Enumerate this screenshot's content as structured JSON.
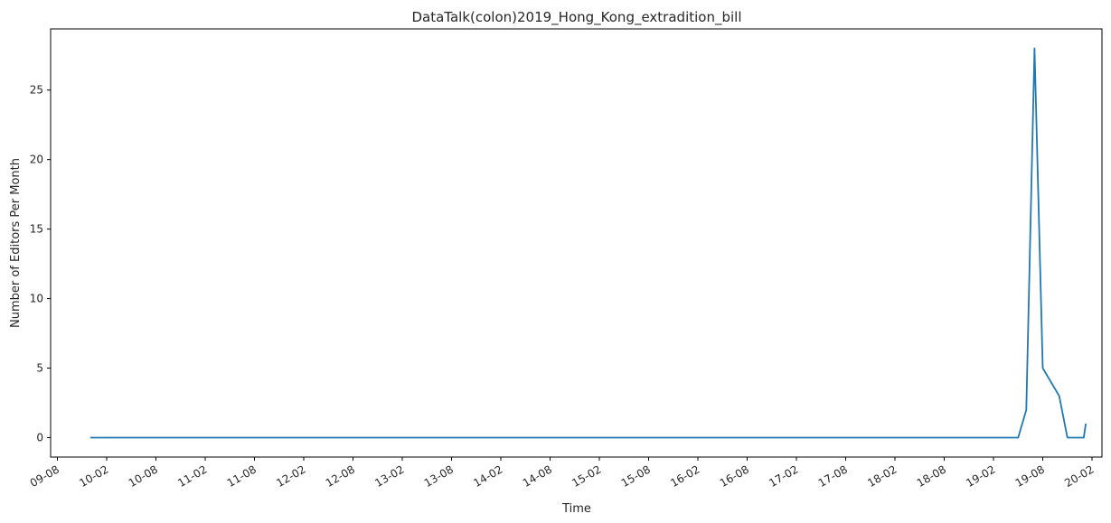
{
  "chart_data": {
    "type": "line",
    "title": "DataTalk(colon)2019_Hong_Kong_extradition_bill",
    "xlabel": "Time",
    "ylabel": "Number of Editors Per Month",
    "x_tick_labels": [
      "09-08",
      "10-02",
      "10-08",
      "11-02",
      "11-08",
      "12-02",
      "12-08",
      "13-02",
      "13-08",
      "14-02",
      "14-08",
      "15-02",
      "15-08",
      "16-02",
      "16-08",
      "17-02",
      "17-08",
      "18-02",
      "18-08",
      "19-02",
      "19-08",
      "20-02"
    ],
    "y_ticks": [
      0,
      5,
      10,
      15,
      20,
      25
    ],
    "ylim": [
      -1.4,
      29.4
    ],
    "grid": false,
    "legend": "none",
    "color": "#1f77b4",
    "series": [
      {
        "x": [
          "2009-12",
          "2019-04",
          "2019-05",
          "2019-06",
          "2019-07",
          "2019-08",
          "2019-09",
          "2019-10",
          "2019-11",
          "2019-12",
          "2020-01",
          "2020-01"
        ],
        "values": [
          0,
          0,
          0,
          2,
          28,
          5,
          4,
          3,
          0,
          0,
          0,
          1
        ]
      }
    ]
  }
}
